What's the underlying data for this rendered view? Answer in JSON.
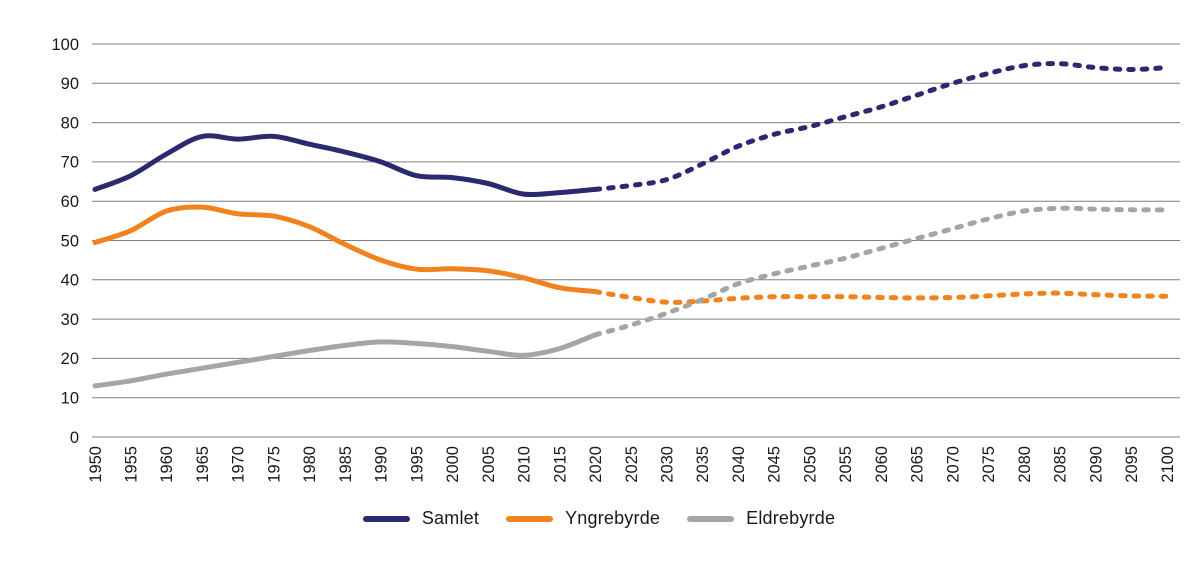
{
  "chart_data": {
    "type": "line",
    "title": "",
    "xlabel": "",
    "ylabel": "",
    "ylim": [
      0,
      100
    ],
    "ytick_step": 10,
    "yticks": [
      0,
      10,
      20,
      30,
      40,
      50,
      60,
      70,
      80,
      90,
      100
    ],
    "grid": "horizontal",
    "legend_position": "bottom",
    "projection_note": "lines are solid up to 2020 and dashed (projection) after 2020",
    "solid_until": 2020,
    "x": [
      1950,
      1955,
      1960,
      1965,
      1970,
      1975,
      1980,
      1985,
      1990,
      1995,
      2000,
      2005,
      2010,
      2015,
      2020,
      2025,
      2030,
      2035,
      2040,
      2045,
      2050,
      2055,
      2060,
      2065,
      2070,
      2075,
      2080,
      2085,
      2090,
      2095,
      2100
    ],
    "series": [
      {
        "name": "Samlet",
        "color": "#2b2a71",
        "values": [
          63,
          66.5,
          72,
          76.5,
          75.8,
          76.5,
          74.5,
          72.5,
          70,
          66.5,
          66,
          64.5,
          61.8,
          62.2,
          63,
          64,
          65.5,
          69.5,
          74,
          77,
          79,
          81.5,
          84,
          87,
          90,
          92.5,
          94.5,
          95,
          94,
          93.5,
          94
        ]
      },
      {
        "name": "Yngrebyrde",
        "color": "#f0831e",
        "values": [
          49.5,
          52.5,
          57.5,
          58.5,
          56.8,
          56.2,
          53.5,
          49,
          45,
          42.7,
          42.8,
          42.3,
          40.5,
          38,
          37,
          35.5,
          34.3,
          34.6,
          35.3,
          35.7,
          35.7,
          35.7,
          35.5,
          35.4,
          35.5,
          35.9,
          36.4,
          36.6,
          36.2,
          35.9,
          35.8
        ]
      },
      {
        "name": "Eldrebyrde",
        "color": "#a5a5a5",
        "values": [
          13,
          14.3,
          16,
          17.5,
          19,
          20.5,
          22,
          23.3,
          24.2,
          23.8,
          23,
          21.8,
          20.8,
          22.5,
          26,
          28.5,
          31.5,
          35,
          39,
          41.5,
          43.5,
          45.5,
          48,
          50.5,
          53,
          55.5,
          57.5,
          58.2,
          58,
          57.8,
          57.8
        ]
      }
    ],
    "gridline_color": "#7f7f7f",
    "tick_label_color": "#1a1a1a"
  },
  "legend": {
    "items": [
      {
        "label": "Samlet"
      },
      {
        "label": "Yngrebyrde"
      },
      {
        "label": "Eldrebyrde"
      }
    ]
  }
}
